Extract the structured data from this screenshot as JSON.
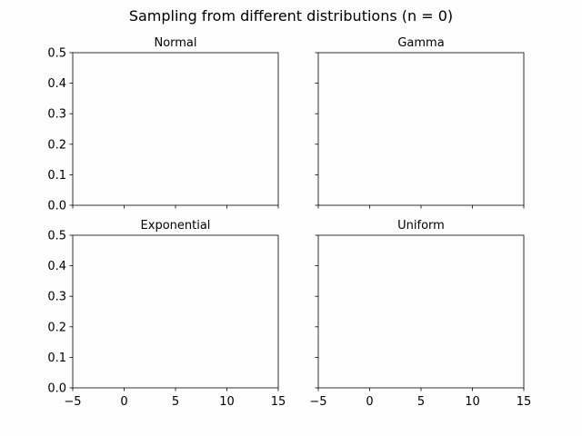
{
  "figure": {
    "title": "Sampling from different distributions (n = 0)"
  },
  "chart_data": [
    {
      "type": "bar",
      "title": "Normal",
      "values": [],
      "xlim": [
        -5,
        15
      ],
      "ylim": [
        0,
        0.5
      ],
      "xticks": [
        -5,
        0,
        5,
        10,
        15
      ],
      "yticks": [
        0.0,
        0.1,
        0.2,
        0.3,
        0.4,
        0.5
      ],
      "xtick_labels": [
        "−5",
        "0",
        "5",
        "10",
        "15"
      ],
      "ytick_labels": [
        "0.0",
        "0.1",
        "0.2",
        "0.3",
        "0.4",
        "0.5"
      ],
      "show_xtick_labels": false,
      "show_ytick_labels": true,
      "grid": false
    },
    {
      "type": "bar",
      "title": "Gamma",
      "values": [],
      "xlim": [
        -5,
        15
      ],
      "ylim": [
        0,
        0.5
      ],
      "xticks": [
        -5,
        0,
        5,
        10,
        15
      ],
      "yticks": [
        0.0,
        0.1,
        0.2,
        0.3,
        0.4,
        0.5
      ],
      "xtick_labels": [
        "−5",
        "0",
        "5",
        "10",
        "15"
      ],
      "ytick_labels": [
        "0.0",
        "0.1",
        "0.2",
        "0.3",
        "0.4",
        "0.5"
      ],
      "show_xtick_labels": false,
      "show_ytick_labels": false,
      "grid": false
    },
    {
      "type": "bar",
      "title": "Exponential",
      "values": [],
      "xlim": [
        -5,
        15
      ],
      "ylim": [
        0,
        0.5
      ],
      "xticks": [
        -5,
        0,
        5,
        10,
        15
      ],
      "yticks": [
        0.0,
        0.1,
        0.2,
        0.3,
        0.4,
        0.5
      ],
      "xtick_labels": [
        "−5",
        "0",
        "5",
        "10",
        "15"
      ],
      "ytick_labels": [
        "0.0",
        "0.1",
        "0.2",
        "0.3",
        "0.4",
        "0.5"
      ],
      "show_xtick_labels": true,
      "show_ytick_labels": true,
      "grid": false
    },
    {
      "type": "bar",
      "title": "Uniform",
      "values": [],
      "xlim": [
        -5,
        15
      ],
      "ylim": [
        0,
        0.5
      ],
      "xticks": [
        -5,
        0,
        5,
        10,
        15
      ],
      "yticks": [
        0.0,
        0.1,
        0.2,
        0.3,
        0.4,
        0.5
      ],
      "xtick_labels": [
        "−5",
        "0",
        "5",
        "10",
        "15"
      ],
      "ytick_labels": [
        "0.0",
        "0.1",
        "0.2",
        "0.3",
        "0.4",
        "0.5"
      ],
      "show_xtick_labels": true,
      "show_ytick_labels": false,
      "grid": false
    }
  ],
  "colors": {
    "axes_edge": "#000000",
    "text": "#000000",
    "background": "#fdfdfd"
  }
}
